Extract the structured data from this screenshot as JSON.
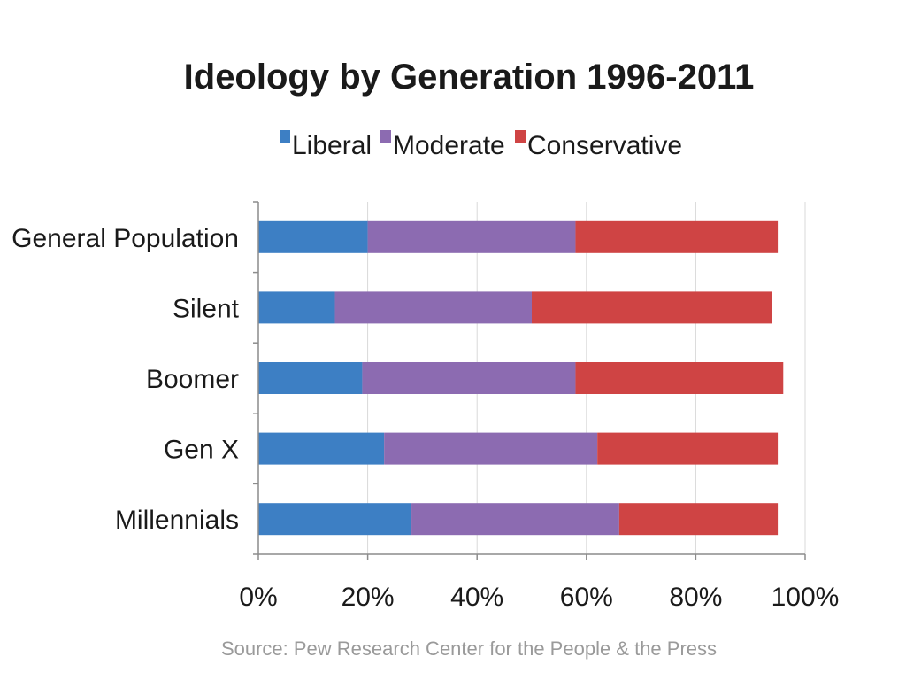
{
  "chart_data": {
    "type": "bar",
    "orientation": "horizontal",
    "stacked": true,
    "title": "Ideology by Generation 1996-2011",
    "categories": [
      "General Population",
      "Silent",
      "Boomer",
      "Gen X",
      "Millennials"
    ],
    "series": [
      {
        "name": "Liberal",
        "color": "#3d7fc4",
        "values": [
          20,
          14,
          19,
          23,
          28
        ]
      },
      {
        "name": "Moderate",
        "color": "#8c6bb1",
        "values": [
          38,
          36,
          39,
          39,
          38
        ]
      },
      {
        "name": "Conservative",
        "color": "#cf4444",
        "values": [
          37,
          44,
          38,
          33,
          29
        ]
      }
    ],
    "xlim": [
      0,
      100
    ],
    "xticks": [
      0,
      20,
      40,
      60,
      80,
      100
    ],
    "xtick_labels": [
      "0%",
      "20%",
      "40%",
      "60%",
      "80%",
      "100%"
    ],
    "xlabel": "",
    "ylabel": "",
    "grid": true,
    "legend_position": "top",
    "source": "Source: Pew Research Center for the People & the Press"
  }
}
